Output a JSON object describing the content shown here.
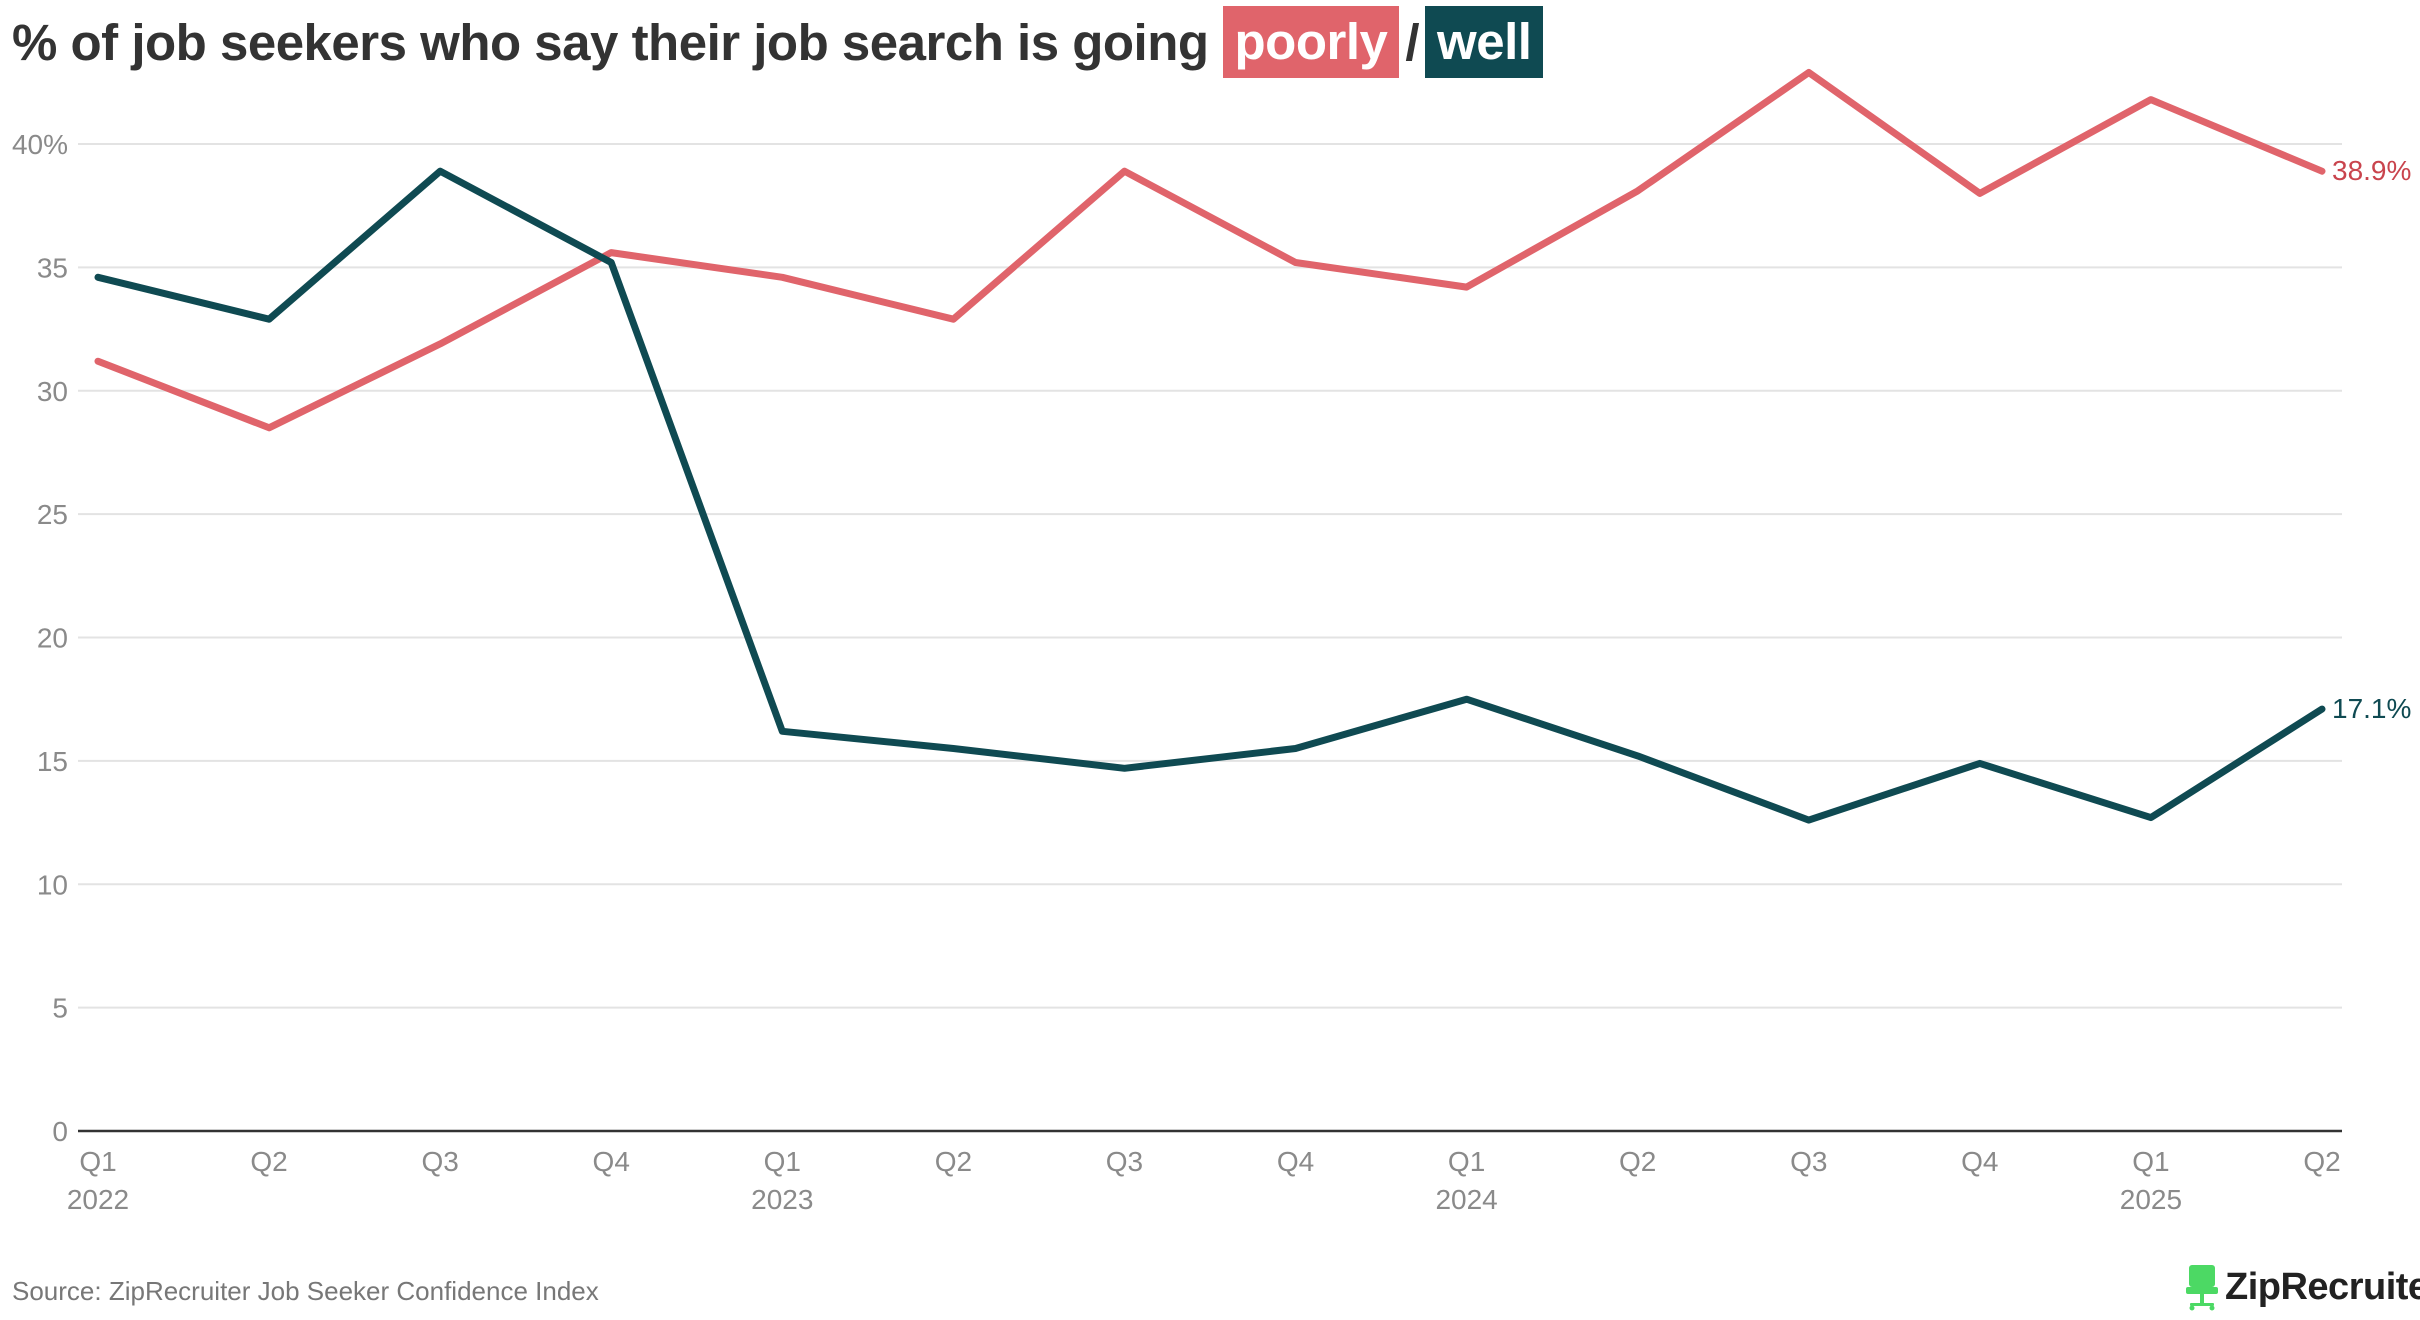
{
  "title": {
    "prefix": "% of job seekers who say their job search is going",
    "poorly_label": "poorly",
    "separator": "/",
    "well_label": "well"
  },
  "source": "Source: ZipRecruiter Job Seeker Confidence Index",
  "logo": {
    "text": "ZipRecruiter",
    "registered": "®",
    "icon": "chair-icon"
  },
  "colors": {
    "poorly": "#e0646b",
    "well": "#0f4a52",
    "poorly_label_text": "#c9444d",
    "grid": "#e3e3e3",
    "axis": "#333333",
    "logo_green": "#4cd964"
  },
  "chart_data": {
    "type": "line",
    "title": "% of job seekers who say their job search is going poorly / well",
    "xlabel": "",
    "ylabel": "",
    "ylim": [
      0,
      43
    ],
    "yticks": [
      0,
      5,
      10,
      15,
      20,
      25,
      30,
      35,
      40
    ],
    "ytick_labels": [
      "0",
      "5",
      "10",
      "15",
      "20",
      "25",
      "30",
      "35",
      "40%"
    ],
    "grid": true,
    "legend": "in title",
    "x": [
      "Q1",
      "Q2",
      "Q3",
      "Q4",
      "Q1",
      "Q2",
      "Q3",
      "Q4",
      "Q1",
      "Q2",
      "Q3",
      "Q4",
      "Q1",
      "Q2"
    ],
    "x_years": [
      "2022",
      "",
      "",
      "",
      "2023",
      "",
      "",
      "",
      "2024",
      "",
      "",
      "",
      "2025",
      ""
    ],
    "series": [
      {
        "name": "poorly",
        "color": "#e0646b",
        "values": [
          31.2,
          28.5,
          31.9,
          35.6,
          34.6,
          32.9,
          38.9,
          35.2,
          34.2,
          38.1,
          42.9,
          38.0,
          41.8,
          38.9
        ],
        "end_label": "38.9%"
      },
      {
        "name": "well",
        "color": "#0f4a52",
        "values": [
          34.6,
          32.9,
          38.9,
          35.2,
          16.2,
          15.5,
          14.7,
          15.5,
          17.5,
          15.2,
          12.6,
          14.9,
          12.7,
          17.1
        ],
        "end_label": "17.1%"
      }
    ]
  }
}
